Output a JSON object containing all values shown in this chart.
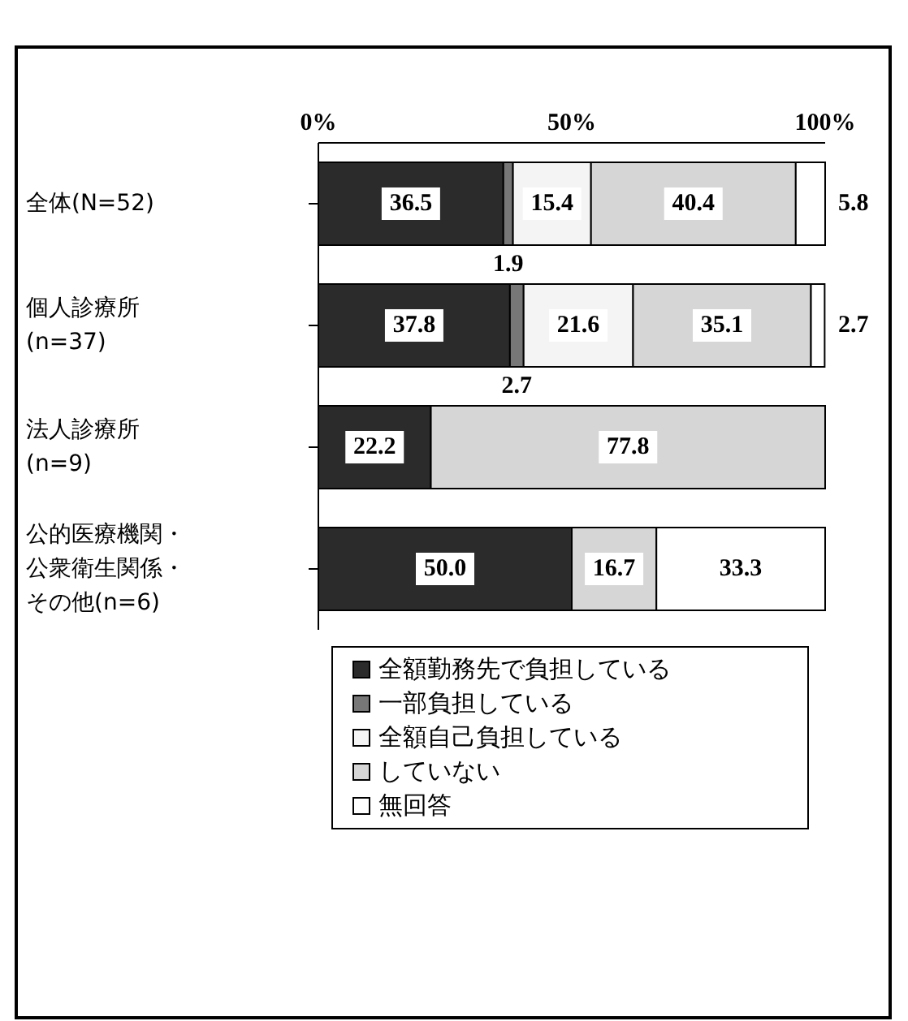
{
  "chart_data": {
    "type": "bar",
    "orientation": "horizontal",
    "stacked": true,
    "categories": [
      "全体(N=52)",
      "個人診療所(n=37)",
      "法人診療所(n=9)",
      "公的医療機関・公衆衛生関係・その他(n=6)"
    ],
    "series": [
      {
        "name": "全額勤務先で負担している",
        "color": "#2b2b2b",
        "values": [
          36.5,
          37.8,
          22.2,
          50.0
        ],
        "value_labels": [
          "36.5",
          "37.8",
          "22.2",
          "50.0"
        ]
      },
      {
        "name": "一部負担している",
        "color": "#777777",
        "values": [
          1.9,
          2.7,
          0,
          0
        ],
        "value_labels": [
          "1.9",
          "2.7",
          null,
          null
        ]
      },
      {
        "name": "全額自己負担している",
        "color": "#f4f4f4",
        "values": [
          15.4,
          21.6,
          0,
          0
        ],
        "value_labels": [
          "15.4",
          "21.6",
          null,
          null
        ]
      },
      {
        "name": "していない",
        "color": "#d6d6d6",
        "values": [
          40.4,
          35.1,
          77.8,
          16.7
        ],
        "value_labels": [
          "40.4",
          "35.1",
          "77.8",
          "16.7"
        ]
      },
      {
        "name": "無回答",
        "color": "#ffffff",
        "values": [
          5.8,
          2.7,
          0,
          33.3
        ],
        "value_labels": [
          "5.8",
          "2.7",
          null,
          "33.3"
        ]
      }
    ],
    "xlim": [
      0,
      100
    ],
    "xticks": [
      {
        "value": 0,
        "label": "0%"
      },
      {
        "value": 50,
        "label": "50%"
      },
      {
        "value": 100,
        "label": "100%"
      }
    ],
    "grid": false,
    "legend": "bottom"
  }
}
